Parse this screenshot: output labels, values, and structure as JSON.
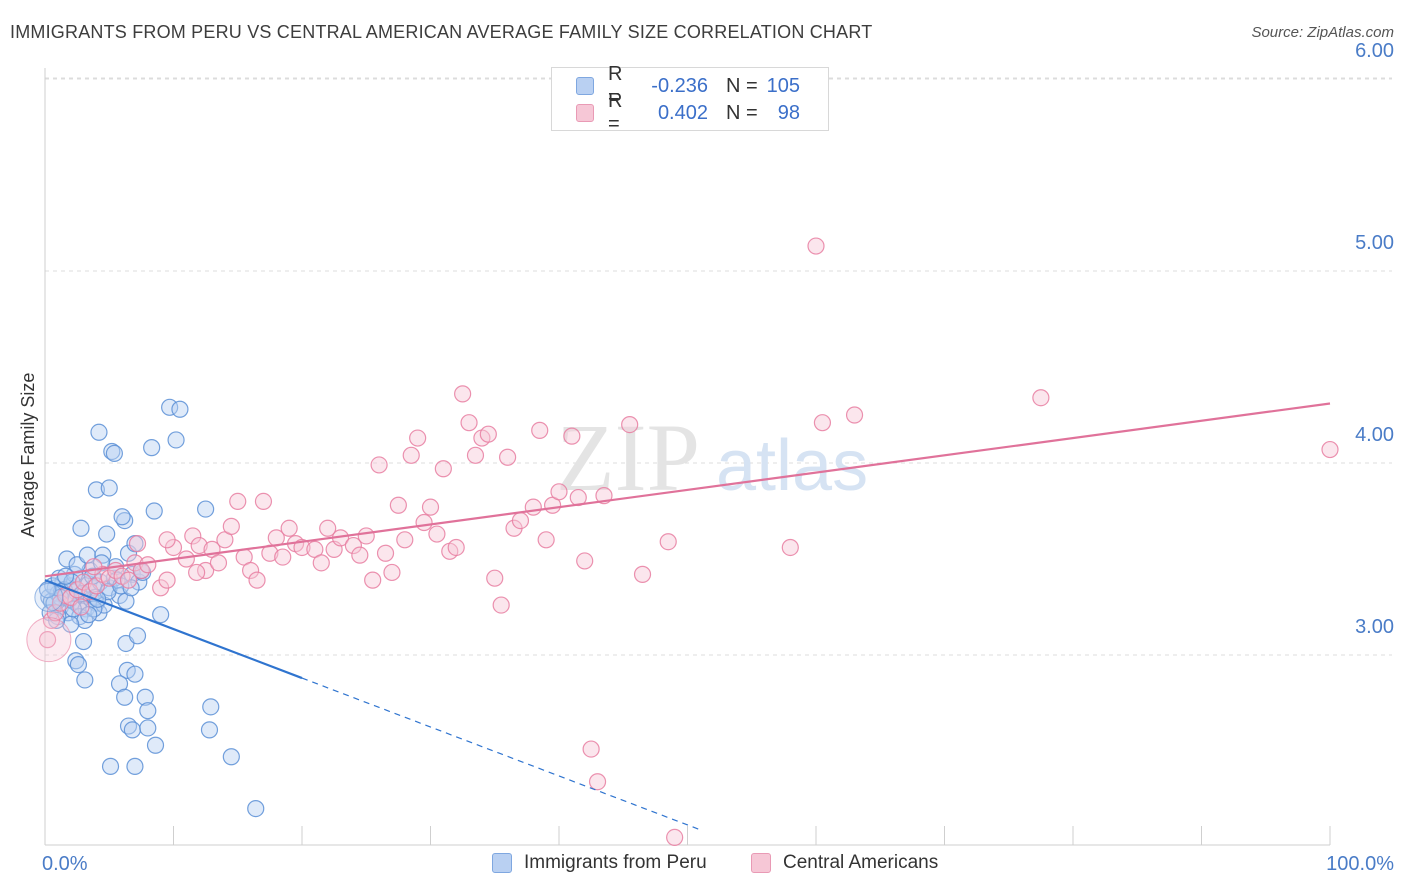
{
  "title": "IMMIGRANTS FROM PERU VS CENTRAL AMERICAN AVERAGE FAMILY SIZE CORRELATION CHART",
  "source": "Source: ZipAtlas.com",
  "watermark": {
    "zip": "ZIP",
    "atlas": "atlas"
  },
  "colors": {
    "peru": "#5b8fd6",
    "peru_fill": "#b9d0f2",
    "central": "#e87ea1",
    "central_fill": "#f6c7d6",
    "peru_line": "#2f74cf",
    "central_line": "#e0729a"
  },
  "legend": {
    "rows": [
      {
        "r_label": "R =",
        "r_value": "-0.236",
        "n_label": "N =",
        "n_value": "105"
      },
      {
        "r_label": "R =",
        "r_value": "0.402",
        "n_label": "N =",
        "n_value": "98"
      }
    ]
  },
  "bottom_legend": {
    "peru": "Immigrants from Peru",
    "central": "Central Americans"
  },
  "chart_data": {
    "type": "scatter",
    "xlabel": "",
    "ylabel": "Average Family Size",
    "xlim": [
      0,
      100
    ],
    "ylim": [
      2.05,
      6.1
    ],
    "x_tick_labels": {
      "min": "0.0%",
      "max": "100.0%"
    },
    "y_ticks": [
      {
        "value": 3,
        "label": "3.00"
      },
      {
        "value": 4,
        "label": "4.00"
      },
      {
        "value": 5,
        "label": "5.00"
      },
      {
        "value": 6,
        "label": "6.00"
      }
    ],
    "grid": true,
    "series": [
      {
        "name": "Immigrants from Peru",
        "key": "peru",
        "trend": {
          "x0": 0,
          "y0": 3.39,
          "x1": 20,
          "y1": 2.88,
          "dash_to_x": 51
        },
        "points": [
          [
            0.3,
            3.3
          ],
          [
            0.5,
            3.28
          ],
          [
            0.8,
            3.35
          ],
          [
            1.0,
            3.32
          ],
          [
            1.2,
            3.25
          ],
          [
            1.4,
            3.38
          ],
          [
            1.6,
            3.3
          ],
          [
            1.8,
            3.22
          ],
          [
            2.0,
            3.36
          ],
          [
            2.2,
            3.28
          ],
          [
            2.4,
            3.33
          ],
          [
            2.6,
            3.26
          ],
          [
            2.8,
            3.4
          ],
          [
            3.0,
            3.31
          ],
          [
            3.2,
            3.24
          ],
          [
            3.4,
            3.37
          ],
          [
            3.6,
            3.29
          ],
          [
            3.8,
            3.35
          ],
          [
            4.0,
            3.27
          ],
          [
            4.2,
            3.22
          ],
          [
            0.6,
            3.36
          ],
          [
            1.1,
            3.4
          ],
          [
            1.5,
            3.34
          ],
          [
            1.9,
            3.29
          ],
          [
            2.3,
            3.42
          ],
          [
            2.7,
            3.2
          ],
          [
            3.1,
            3.18
          ],
          [
            3.5,
            3.44
          ],
          [
            3.9,
            3.3
          ],
          [
            4.3,
            3.38
          ],
          [
            4.6,
            3.26
          ],
          [
            5.0,
            3.35
          ],
          [
            5.4,
            3.4
          ],
          [
            5.8,
            3.31
          ],
          [
            6.3,
            3.28
          ],
          [
            6.8,
            3.42
          ],
          [
            7.3,
            3.38
          ],
          [
            1.7,
            3.5
          ],
          [
            2.5,
            3.47
          ],
          [
            3.3,
            3.52
          ],
          [
            4.5,
            3.52
          ],
          [
            5.5,
            3.46
          ],
          [
            6.5,
            3.53
          ],
          [
            7.0,
            3.58
          ],
          [
            4.8,
            3.63
          ],
          [
            6.2,
            3.7
          ],
          [
            2.8,
            3.66
          ],
          [
            4.0,
            3.86
          ],
          [
            5.0,
            3.87
          ],
          [
            6.0,
            3.72
          ],
          [
            8.5,
            3.75
          ],
          [
            12.5,
            3.76
          ],
          [
            4.2,
            4.16
          ],
          [
            5.2,
            4.06
          ],
          [
            5.4,
            4.05
          ],
          [
            8.3,
            4.08
          ],
          [
            9.7,
            4.29
          ],
          [
            10.5,
            4.28
          ],
          [
            10.2,
            4.12
          ],
          [
            1.0,
            3.2
          ],
          [
            2.0,
            3.16
          ],
          [
            3.0,
            3.07
          ],
          [
            2.4,
            2.97
          ],
          [
            2.6,
            2.95
          ],
          [
            3.1,
            2.87
          ],
          [
            6.3,
            3.06
          ],
          [
            7.2,
            3.1
          ],
          [
            6.4,
            2.92
          ],
          [
            7.0,
            2.9
          ],
          [
            5.8,
            2.85
          ],
          [
            6.2,
            2.78
          ],
          [
            7.8,
            2.78
          ],
          [
            8.0,
            2.71
          ],
          [
            6.5,
            2.63
          ],
          [
            6.8,
            2.61
          ],
          [
            8.0,
            2.62
          ],
          [
            8.6,
            2.53
          ],
          [
            12.9,
            2.73
          ],
          [
            12.8,
            2.61
          ],
          [
            5.1,
            2.42
          ],
          [
            7.0,
            2.42
          ],
          [
            14.5,
            2.47
          ],
          [
            16.4,
            2.2
          ],
          [
            9.0,
            3.21
          ],
          [
            0.4,
            3.22
          ],
          [
            0.9,
            3.18
          ],
          [
            1.3,
            3.33
          ],
          [
            2.1,
            3.38
          ],
          [
            3.7,
            3.41
          ],
          [
            4.4,
            3.48
          ],
          [
            5.6,
            3.39
          ],
          [
            7.6,
            3.43
          ],
          [
            1.2,
            3.3
          ],
          [
            2.9,
            3.32
          ],
          [
            0.7,
            3.27
          ],
          [
            3.8,
            3.24
          ],
          [
            4.9,
            3.33
          ],
          [
            1.6,
            3.41
          ],
          [
            2.2,
            3.24
          ],
          [
            3.4,
            3.21
          ],
          [
            0.2,
            3.34
          ],
          [
            5.9,
            3.36
          ],
          [
            4.1,
            3.29
          ],
          [
            7.5,
            3.44
          ],
          [
            6.7,
            3.35
          ]
        ]
      },
      {
        "name": "Central Americans",
        "key": "central",
        "trend": {
          "x0": 0,
          "y0": 3.41,
          "x1": 100,
          "y1": 4.31
        },
        "points": [
          [
            0.5,
            3.18
          ],
          [
            0.8,
            3.22
          ],
          [
            1.2,
            3.27
          ],
          [
            1.6,
            3.31
          ],
          [
            2.0,
            3.3
          ],
          [
            2.5,
            3.34
          ],
          [
            3.0,
            3.38
          ],
          [
            3.5,
            3.33
          ],
          [
            4.0,
            3.36
          ],
          [
            4.5,
            3.42
          ],
          [
            5.0,
            3.4
          ],
          [
            5.5,
            3.44
          ],
          [
            6.0,
            3.41
          ],
          [
            6.5,
            3.39
          ],
          [
            7.0,
            3.48
          ],
          [
            7.5,
            3.44
          ],
          [
            8.0,
            3.47
          ],
          [
            9.0,
            3.35
          ],
          [
            9.5,
            3.39
          ],
          [
            10.0,
            3.56
          ],
          [
            11.0,
            3.5
          ],
          [
            11.5,
            3.62
          ],
          [
            12.0,
            3.57
          ],
          [
            12.5,
            3.44
          ],
          [
            13.0,
            3.55
          ],
          [
            13.5,
            3.48
          ],
          [
            14.0,
            3.6
          ],
          [
            14.5,
            3.67
          ],
          [
            15.0,
            3.8
          ],
          [
            15.5,
            3.51
          ],
          [
            16.0,
            3.44
          ],
          [
            16.5,
            3.39
          ],
          [
            17.0,
            3.8
          ],
          [
            17.5,
            3.53
          ],
          [
            18.0,
            3.61
          ],
          [
            18.5,
            3.51
          ],
          [
            19.0,
            3.66
          ],
          [
            19.5,
            3.58
          ],
          [
            20.0,
            3.56
          ],
          [
            21.0,
            3.55
          ],
          [
            21.5,
            3.48
          ],
          [
            22.0,
            3.66
          ],
          [
            22.5,
            3.55
          ],
          [
            23.0,
            3.61
          ],
          [
            24.0,
            3.57
          ],
          [
            24.5,
            3.52
          ],
          [
            25.0,
            3.62
          ],
          [
            25.5,
            3.39
          ],
          [
            26.0,
            3.99
          ],
          [
            26.5,
            3.53
          ],
          [
            27.0,
            3.43
          ],
          [
            27.5,
            3.78
          ],
          [
            28.0,
            3.6
          ],
          [
            28.5,
            4.04
          ],
          [
            29.0,
            4.13
          ],
          [
            29.5,
            3.69
          ],
          [
            30.0,
            3.77
          ],
          [
            30.5,
            3.63
          ],
          [
            31.0,
            3.97
          ],
          [
            31.5,
            3.54
          ],
          [
            32.0,
            3.56
          ],
          [
            32.5,
            4.36
          ],
          [
            33.0,
            4.21
          ],
          [
            33.5,
            4.04
          ],
          [
            34.0,
            4.13
          ],
          [
            34.5,
            4.15
          ],
          [
            35.0,
            3.4
          ],
          [
            35.5,
            3.26
          ],
          [
            36.0,
            4.03
          ],
          [
            36.5,
            3.66
          ],
          [
            37.0,
            3.7
          ],
          [
            38.0,
            3.77
          ],
          [
            38.5,
            4.17
          ],
          [
            39.0,
            3.6
          ],
          [
            39.5,
            3.78
          ],
          [
            40.0,
            3.85
          ],
          [
            41.0,
            4.14
          ],
          [
            41.5,
            3.82
          ],
          [
            42.0,
            3.49
          ],
          [
            43.5,
            3.83
          ],
          [
            45.5,
            4.2
          ],
          [
            46.5,
            3.42
          ],
          [
            48.5,
            3.59
          ],
          [
            58.0,
            3.56
          ],
          [
            60.0,
            5.13
          ],
          [
            60.5,
            4.21
          ],
          [
            63.0,
            4.25
          ],
          [
            77.5,
            4.34
          ],
          [
            100.0,
            4.07
          ],
          [
            42.5,
            2.51
          ],
          [
            43.0,
            2.34
          ],
          [
            49.0,
            2.05
          ],
          [
            0.2,
            3.08
          ],
          [
            3.8,
            3.46
          ],
          [
            9.5,
            3.6
          ],
          [
            2.8,
            3.25
          ],
          [
            7.2,
            3.58
          ],
          [
            11.8,
            3.43
          ]
        ]
      }
    ]
  }
}
